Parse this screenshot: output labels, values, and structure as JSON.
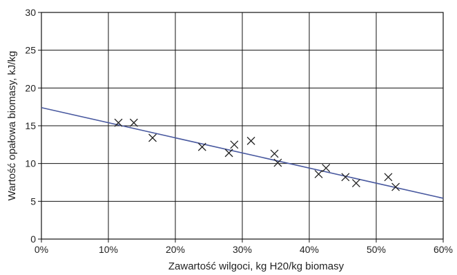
{
  "chart_data": {
    "type": "scatter",
    "title": "",
    "xlabel": "Zawartość wilgoci, kg H20/kg biomasy",
    "ylabel": "Wartość opałowa biomasy, kJ/kg",
    "xlim": [
      0,
      60
    ],
    "ylim": [
      0,
      30
    ],
    "x_tick_values": [
      0,
      10,
      20,
      30,
      40,
      50,
      60
    ],
    "x_tick_labels": [
      "0%",
      "10%",
      "20%",
      "30%",
      "40%",
      "50%",
      "60%"
    ],
    "y_tick_values": [
      0,
      5,
      10,
      15,
      20,
      25,
      30
    ],
    "y_tick_labels": [
      "0",
      "5",
      "10",
      "15",
      "20",
      "25",
      "30"
    ],
    "grid": true,
    "marker": "x",
    "series": [
      {
        "points": [
          {
            "x": 11.5,
            "y": 15.4
          },
          {
            "x": 13.8,
            "y": 15.4
          },
          {
            "x": 16.6,
            "y": 13.4
          },
          {
            "x": 24.0,
            "y": 12.2
          },
          {
            "x": 28.0,
            "y": 11.4
          },
          {
            "x": 28.8,
            "y": 12.5
          },
          {
            "x": 31.3,
            "y": 13.0
          },
          {
            "x": 34.8,
            "y": 11.3
          },
          {
            "x": 35.3,
            "y": 10.1
          },
          {
            "x": 41.4,
            "y": 8.6
          },
          {
            "x": 42.5,
            "y": 9.4
          },
          {
            "x": 45.4,
            "y": 8.2
          },
          {
            "x": 47.0,
            "y": 7.4
          },
          {
            "x": 51.8,
            "y": 8.2
          },
          {
            "x": 52.9,
            "y": 6.9
          }
        ]
      }
    ],
    "trendline": {
      "x": [
        0,
        60
      ],
      "y": [
        17.4,
        5.4
      ],
      "color": "#4a5aa0"
    }
  }
}
